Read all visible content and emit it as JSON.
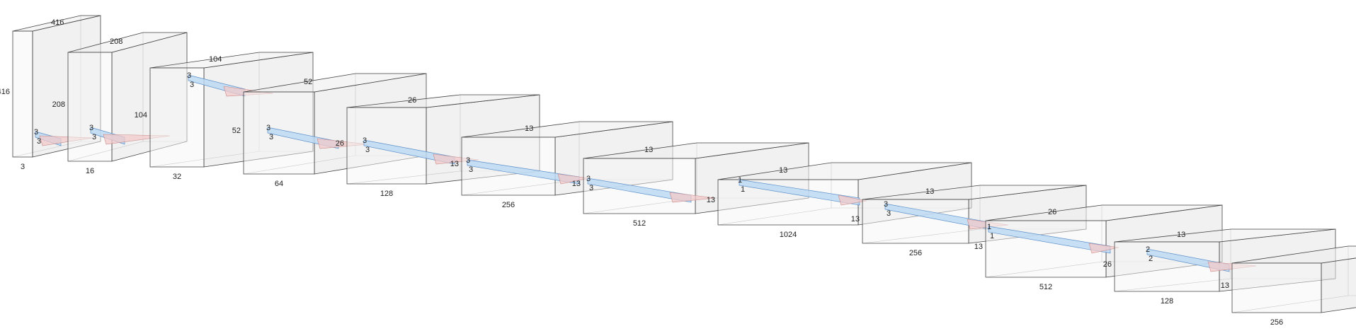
{
  "colors": {
    "face_front": "#f6f6f6",
    "face_top": "#eeeeee",
    "face_side": "#e6e6e6",
    "kernel_fill": "#bcd9f2",
    "cone_fill": "#f2c9c9"
  },
  "layers": [
    {
      "name": "input-volume",
      "depth": "3",
      "height": "416",
      "width": "416",
      "kernel": [
        "3",
        "3"
      ]
    },
    {
      "name": "conv-1",
      "depth": "16",
      "height": "208",
      "width": "208",
      "kernel": [
        "3",
        "3"
      ]
    },
    {
      "name": "conv-2",
      "depth": "32",
      "height": "104",
      "width": "104",
      "kernel": [
        "3",
        "3"
      ]
    },
    {
      "name": "conv-3",
      "depth": "64",
      "height": "52",
      "width": "52",
      "kernel": [
        "3",
        "3"
      ]
    },
    {
      "name": "conv-4",
      "depth": "128",
      "height": "26",
      "width": "26",
      "kernel": [
        "3",
        "3"
      ]
    },
    {
      "name": "conv-5",
      "depth": "256",
      "height": "13",
      "width": "13",
      "kernel": [
        "3",
        "3"
      ]
    },
    {
      "name": "conv-6",
      "depth": "512",
      "height": "13",
      "width": "13",
      "kernel": [
        "3",
        "3"
      ]
    },
    {
      "name": "conv-7",
      "depth": "1024",
      "height": "13",
      "width": "13",
      "kernel": [
        "1",
        "1"
      ]
    },
    {
      "name": "conv-8",
      "depth": "256",
      "height": "13",
      "width": "13",
      "kernel": [
        "3",
        "3"
      ]
    },
    {
      "name": "conv-9",
      "depth": "512",
      "height": "13",
      "width": "26",
      "kernel": [
        "1",
        "1"
      ]
    },
    {
      "name": "conv-10",
      "depth": "128",
      "height": "26",
      "width": "13",
      "kernel": [
        "2",
        "2"
      ]
    },
    {
      "name": "conv-11",
      "depth": "256",
      "height": "13",
      "width": "",
      "kernel": []
    }
  ]
}
